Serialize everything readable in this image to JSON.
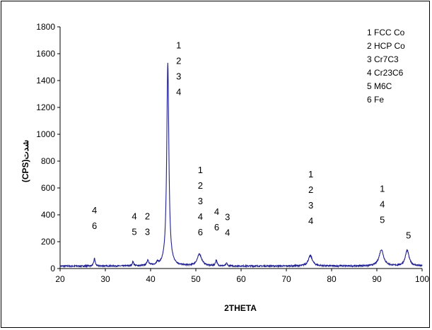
{
  "chart_data": {
    "type": "line",
    "title": "",
    "xlabel": "2THETA",
    "ylabel": "(CPS)شدت",
    "xlim": [
      20,
      100
    ],
    "ylim": [
      0,
      1800
    ],
    "xticks": [
      20,
      30,
      40,
      50,
      60,
      70,
      80,
      90,
      100
    ],
    "yticks": [
      0,
      200,
      400,
      600,
      800,
      1000,
      1200,
      1400,
      1600,
      1800
    ],
    "grid": false,
    "line_color": "#1f1f8f",
    "baseline": 18,
    "peaks": [
      {
        "x": 27.6,
        "y": 75,
        "w": 0.18
      },
      {
        "x": 36.1,
        "y": 48,
        "w": 0.2
      },
      {
        "x": 39.4,
        "y": 60,
        "w": 0.25
      },
      {
        "x": 41.5,
        "y": 35,
        "w": 0.3
      },
      {
        "x": 43.8,
        "y": 1530,
        "w": 0.28
      },
      {
        "x": 50.8,
        "y": 105,
        "w": 0.6
      },
      {
        "x": 54.5,
        "y": 62,
        "w": 0.2
      },
      {
        "x": 56.8,
        "y": 40,
        "w": 0.15
      },
      {
        "x": 75.3,
        "y": 95,
        "w": 0.55
      },
      {
        "x": 91.0,
        "y": 140,
        "w": 0.6
      },
      {
        "x": 96.7,
        "y": 135,
        "w": 0.5
      }
    ],
    "annotations": [
      {
        "x": 27.6,
        "labels": [
          "4",
          "6"
        ],
        "y_top": 410
      },
      {
        "x": 36.4,
        "labels": [
          "4",
          "5"
        ],
        "y_top": 365
      },
      {
        "x": 39.3,
        "labels": [
          "2",
          "3"
        ],
        "y_top": 365
      },
      {
        "x": 46.2,
        "labels": [
          "1",
          "2",
          "3",
          "4"
        ],
        "y_top": 1640
      },
      {
        "x": 51.0,
        "labels": [
          "1",
          "2",
          "3",
          "4",
          "6"
        ],
        "y_top": 710
      },
      {
        "x": 54.6,
        "labels": [
          "4",
          "6"
        ],
        "y_top": 400
      },
      {
        "x": 57.0,
        "labels": [
          "3",
          "4"
        ],
        "y_top": 360
      },
      {
        "x": 75.4,
        "labels": [
          "1",
          "2",
          "3",
          "4"
        ],
        "y_top": 680
      },
      {
        "x": 91.2,
        "labels": [
          "1",
          "4",
          "5"
        ],
        "y_top": 570
      },
      {
        "x": 97.0,
        "labels": [
          "5"
        ],
        "y_top": 225
      }
    ],
    "legend": {
      "placement": "top-right",
      "entries": [
        "1 FCC Co",
        "2  HCP Co",
        "3 Cr7C3",
        "4  Cr23C6",
        "5 M6C",
        "6 Fe"
      ]
    }
  }
}
